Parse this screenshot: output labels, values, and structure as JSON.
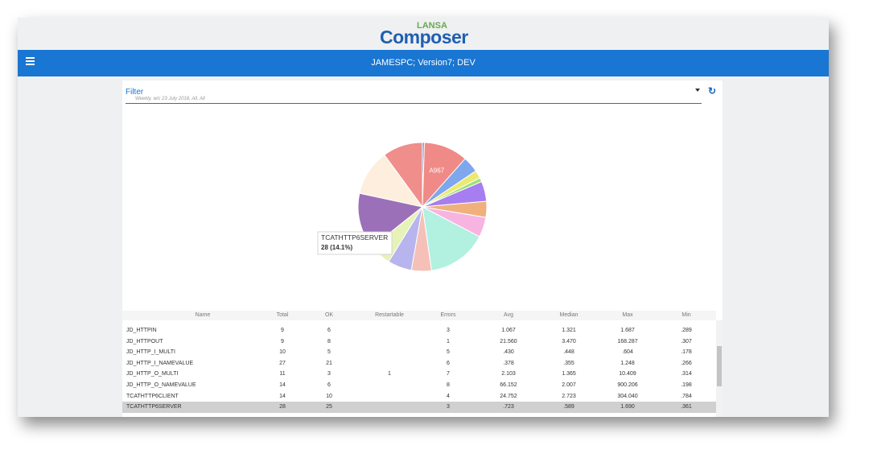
{
  "header": {
    "brand_small": "LANSA",
    "brand": "Composer",
    "title": "JAMESPC; Version7; DEV"
  },
  "filter": {
    "label": "Filter",
    "summary": "Weekly, w/c 23 July 2018, All, All"
  },
  "chart_data": {
    "type": "pie",
    "categories": [
      null,
      "A967",
      null,
      null,
      null,
      null,
      null,
      null,
      null,
      null,
      null,
      null,
      "TCATHTTP6SERVER",
      null,
      null
    ],
    "values": [
      1,
      22,
      8,
      4,
      2,
      10,
      8,
      10,
      30,
      10,
      12,
      11,
      28,
      23,
      20
    ],
    "value_labels": [
      null,
      null,
      null,
      null,
      null,
      null,
      null,
      null,
      null,
      null,
      null,
      null,
      "28 (14.1%)",
      null,
      null
    ],
    "colors": [
      "#6a8fd8",
      "#f08a86",
      "#7fa7ee",
      "#eaea70",
      "#9ee07a",
      "#a77ef0",
      "#f0b07e",
      "#f7b4e0",
      "#b2f0e0",
      "#f4c0b8",
      "#b8b4ee",
      "#e6f2b8",
      "#9b70b8",
      "#fdeedd",
      "#ef8e8a"
    ]
  },
  "table": {
    "columns": [
      "Name",
      "Total",
      "OK",
      "Restartable",
      "Errors",
      "Avg",
      "Median",
      "Max",
      "Min"
    ],
    "rows": [
      [
        "JD_HTTPIN",
        "9",
        "6",
        null,
        "3",
        "1.067",
        "1.321",
        "1.687",
        ".289"
      ],
      [
        "JD_HTTPOUT",
        "9",
        "8",
        null,
        "1",
        "21.560",
        "3.470",
        "168.287",
        ".307"
      ],
      [
        "JD_HTTP_I_MULTI",
        "10",
        "5",
        null,
        "5",
        ".430",
        ".448",
        ".604",
        ".178"
      ],
      [
        "JD_HTTP_I_NAMEVALUE",
        "27",
        "21",
        null,
        "6",
        ".378",
        ".355",
        "1.248",
        ".266"
      ],
      [
        "JD_HTTP_O_MULTI",
        "11",
        "3",
        "1",
        "7",
        "2.103",
        "1.365",
        "10.409",
        ".314"
      ],
      [
        "JD_HTTP_O_NAMEVALUE",
        "14",
        "6",
        null,
        "8",
        "66.152",
        "2.007",
        "900.206",
        ".198"
      ],
      [
        "TCATHTTP6CLIENT",
        "14",
        "10",
        null,
        "4",
        "24.752",
        "2.723",
        "304.040",
        ".784"
      ],
      [
        "TCATHTTP6SERVER",
        "28",
        "25",
        null,
        "3",
        ".723",
        ".589",
        "1.690",
        ".361"
      ]
    ]
  }
}
